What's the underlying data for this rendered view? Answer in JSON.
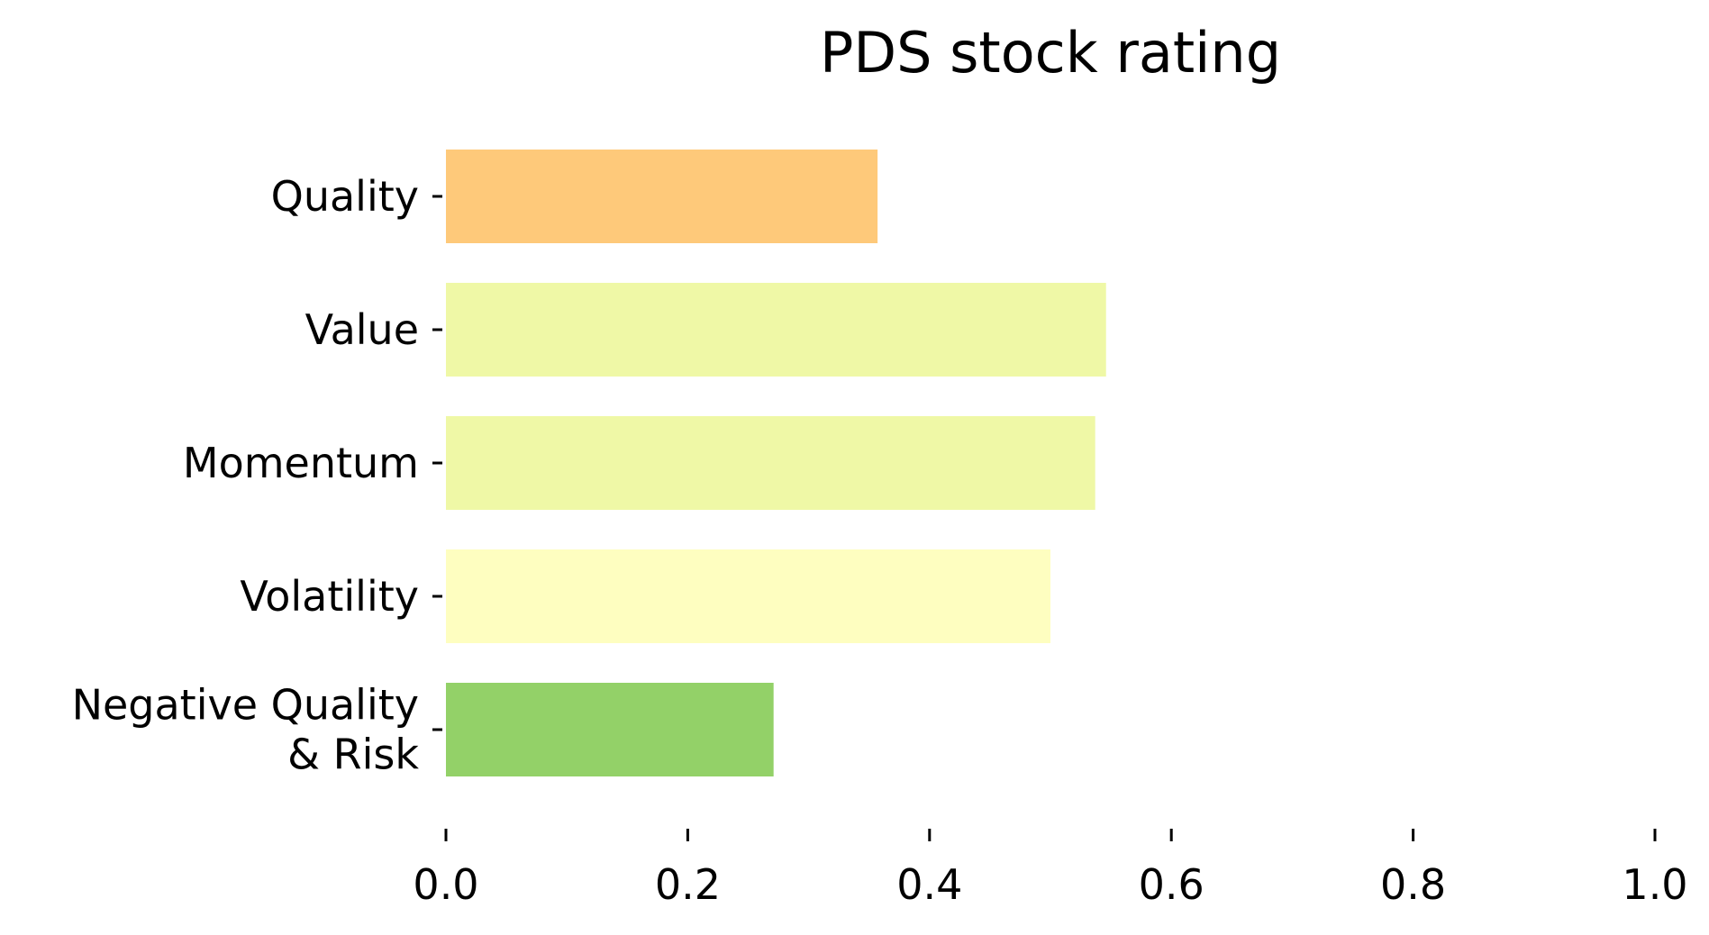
{
  "chart_data": {
    "type": "bar",
    "orientation": "horizontal",
    "title": "PDS stock rating",
    "xlabel": "",
    "ylabel": "",
    "categories": [
      [
        "Quality"
      ],
      [
        "Value"
      ],
      [
        "Momentum"
      ],
      [
        "Volatility"
      ],
      [
        "Negative Quality",
        "& Risk"
      ]
    ],
    "values": [
      0.357,
      0.546,
      0.537,
      0.5,
      0.271
    ],
    "colors": [
      "#fec97a",
      "#eff8a6",
      "#eff8a6",
      "#fefec0",
      "#93d168"
    ],
    "xlim": [
      0.0,
      1.0
    ],
    "xticks": [
      "0.0",
      "0.2",
      "0.4",
      "0.6",
      "0.8",
      "1.0"
    ],
    "grid": false,
    "legend": "none"
  }
}
